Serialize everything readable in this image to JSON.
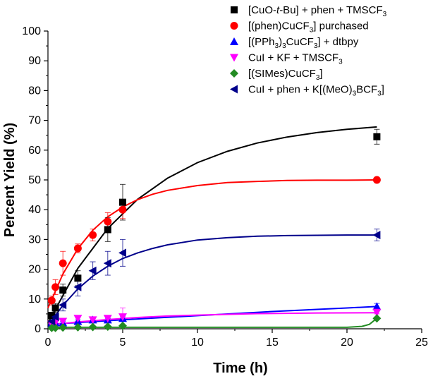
{
  "chart_data": {
    "type": "scatter",
    "title": "",
    "xlabel": "Time (h)",
    "ylabel": "Percent Yield (%)",
    "xlim": [
      0,
      25
    ],
    "ylim": [
      0,
      100
    ],
    "xticks": [
      0,
      5,
      10,
      15,
      20,
      25
    ],
    "yticks": [
      0,
      10,
      20,
      30,
      40,
      50,
      60,
      70,
      80,
      90,
      100
    ],
    "legend_position": "top-right",
    "series": [
      {
        "name": "[CuO-t-Bu] + phen + TMSCF3",
        "legend_parts": [
          {
            "t": "[CuO-"
          },
          {
            "t": "t",
            "style": "italic"
          },
          {
            "t": "-Bu] + phen + TMSCF"
          },
          {
            "t": "3",
            "style": "sub"
          }
        ],
        "marker": "square",
        "color": "#000000",
        "x": [
          0.25,
          0.5,
          1,
          2,
          4,
          5,
          22
        ],
        "y": [
          4.5,
          7,
          13,
          17,
          33.3,
          42.5,
          64.5
        ],
        "err": [
          1,
          1.5,
          2,
          2.5,
          4,
          6,
          2.5
        ],
        "fit_x": [
          0,
          2,
          4,
          6,
          8,
          10,
          12,
          14,
          16,
          18,
          20,
          22
        ],
        "fit_y": [
          2.0,
          20.3,
          33.7,
          43.5,
          50.6,
          55.8,
          59.6,
          62.4,
          64.4,
          65.9,
          67.0,
          67.8
        ]
      },
      {
        "name": "[(phen)CuCF3] purchased",
        "legend_parts": [
          {
            "t": "[(phen)CuCF"
          },
          {
            "t": "3",
            "style": "sub"
          },
          {
            "t": "] purchased"
          }
        ],
        "marker": "circle",
        "color": "#ff0000",
        "x": [
          0.25,
          0.5,
          1,
          2,
          3,
          4,
          5,
          22
        ],
        "y": [
          9.5,
          14,
          22,
          27,
          31.5,
          36,
          40,
          50
        ],
        "err": [
          1.5,
          2.5,
          4,
          1.5,
          2,
          3,
          3,
          0.5
        ],
        "fit_x": [
          0,
          1,
          2,
          3,
          4,
          5,
          6,
          7,
          8,
          10,
          12,
          14,
          16,
          18,
          20,
          22
        ],
        "fit_y": [
          7.0,
          18.4,
          26.9,
          33.1,
          37.6,
          40.9,
          43.4,
          45.2,
          46.5,
          48.1,
          49.1,
          49.5,
          49.8,
          49.9,
          49.9,
          50.0
        ]
      },
      {
        "name": "[(PPh3)3CuCF3] + dtbpy",
        "legend_parts": [
          {
            "t": "[(PPh"
          },
          {
            "t": "3",
            "style": "sub"
          },
          {
            "t": ")"
          },
          {
            "t": "3",
            "style": "sub"
          },
          {
            "t": "CuCF"
          },
          {
            "t": "3",
            "style": "sub"
          },
          {
            "t": "] + dtbpy"
          }
        ],
        "marker": "triangle-up",
        "color": "#0000ff",
        "x": [
          0.25,
          0.5,
          1,
          2,
          3,
          4,
          5,
          22
        ],
        "y": [
          1.5,
          2,
          2,
          2.5,
          3,
          3,
          3.5,
          7.5
        ],
        "err": [
          0.5,
          0.5,
          0.5,
          0.5,
          0.5,
          0.5,
          0.5,
          1
        ],
        "fit_x": [
          0,
          5,
          10,
          15,
          20,
          22
        ],
        "fit_y": [
          1.5,
          3.0,
          4.4,
          5.8,
          7.0,
          7.5
        ]
      },
      {
        "name": "CuI + KF + TMSCF3",
        "legend_parts": [
          {
            "t": "CuI + KF + TMSCF"
          },
          {
            "t": "3",
            "style": "sub"
          }
        ],
        "marker": "triangle-down",
        "color": "#ff00ff",
        "x": [
          0.25,
          0.5,
          1,
          2,
          3,
          4,
          5,
          22
        ],
        "y": [
          1.5,
          2,
          2.5,
          3.5,
          3,
          3.5,
          4,
          5.5
        ],
        "err": [
          0.5,
          0.5,
          1,
          1,
          1,
          1,
          3,
          0.5
        ],
        "fit_x": [
          0,
          2,
          4,
          6,
          8,
          10,
          14,
          18,
          22
        ],
        "fit_y": [
          1.2,
          2.3,
          3.1,
          3.8,
          4.3,
          4.6,
          5.1,
          5.3,
          5.4
        ]
      },
      {
        "name": "[(SIMes)CuCF3]",
        "legend_parts": [
          {
            "t": "[(SIMes)CuCF"
          },
          {
            "t": "3",
            "style": "sub"
          },
          {
            "t": "]"
          }
        ],
        "marker": "diamond",
        "color": "#228b22",
        "x": [
          0.25,
          0.5,
          1,
          2,
          3,
          4,
          5,
          22
        ],
        "y": [
          0.3,
          0.3,
          0.4,
          0.5,
          0.6,
          0.7,
          1,
          3.5
        ],
        "err": [
          0,
          0,
          0,
          0,
          0,
          0,
          0,
          0
        ],
        "fit_x": [
          0,
          2,
          5,
          10,
          15,
          20,
          21,
          21.5,
          22
        ],
        "fit_y": [
          0.5,
          0.5,
          0.5,
          0.5,
          0.5,
          0.5,
          0.8,
          1.5,
          3.5
        ]
      },
      {
        "name": "CuI + phen + K[(MeO)3BCF3]",
        "legend_parts": [
          {
            "t": "CuI + phen + K[(MeO)"
          },
          {
            "t": "3",
            "style": "sub"
          },
          {
            "t": "BCF"
          },
          {
            "t": "3",
            "style": "sub"
          },
          {
            "t": "]"
          }
        ],
        "marker": "triangle-left",
        "color": "#00008b",
        "x": [
          0.25,
          0.5,
          1,
          2,
          3,
          4,
          5,
          22
        ],
        "y": [
          2.5,
          4,
          8,
          14,
          19.5,
          22,
          25.5,
          31.5
        ],
        "err": [
          1,
          1,
          2,
          3,
          3,
          4,
          4.5,
          2
        ],
        "fit_x": [
          0,
          1,
          2,
          3,
          4,
          5,
          6,
          7,
          8,
          10,
          12,
          14,
          16,
          18,
          20,
          22
        ],
        "fit_y": [
          1.0,
          7.9,
          13.4,
          17.7,
          21.0,
          23.6,
          25.5,
          27.0,
          28.2,
          29.8,
          30.6,
          31.1,
          31.3,
          31.4,
          31.5,
          31.5
        ]
      }
    ]
  }
}
